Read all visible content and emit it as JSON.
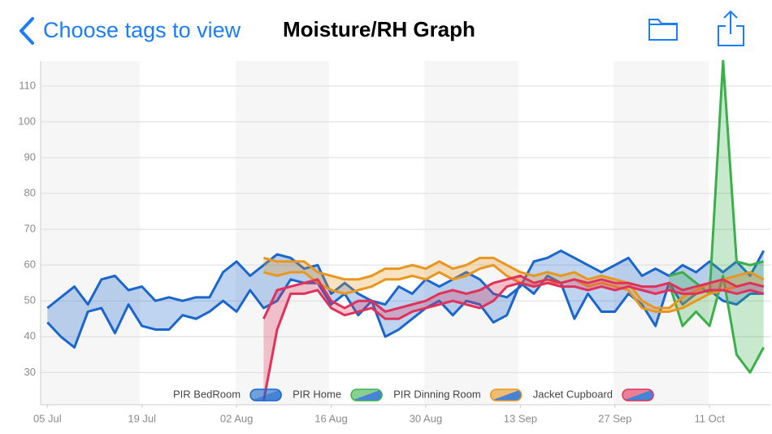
{
  "header": {
    "back": "Choose tags to view",
    "title": "Moisture/RH Graph"
  },
  "chart_data": {
    "type": "range-band",
    "x": [
      "07-05",
      "07-07",
      "07-09",
      "07-11",
      "07-13",
      "07-15",
      "07-17",
      "07-19",
      "07-21",
      "07-23",
      "07-25",
      "07-27",
      "07-29",
      "07-31",
      "08-02",
      "08-04",
      "08-06",
      "08-08",
      "08-10",
      "08-12",
      "08-14",
      "08-16",
      "08-18",
      "08-20",
      "08-22",
      "08-24",
      "08-26",
      "08-28",
      "08-30",
      "09-01",
      "09-03",
      "09-05",
      "09-07",
      "09-09",
      "09-11",
      "09-13",
      "09-15",
      "09-17",
      "09-19",
      "09-21",
      "09-23",
      "09-25",
      "09-27",
      "09-29",
      "10-01",
      "10-03",
      "10-05",
      "10-07",
      "10-09",
      "10-11",
      "10-13",
      "10-15",
      "10-17",
      "10-19"
    ],
    "xlim": [
      "07-04",
      "10-20"
    ],
    "xticks": [
      {
        "value": "07-05",
        "label": "05 Jul"
      },
      {
        "value": "07-19",
        "label": "19 Jul"
      },
      {
        "value": "08-02",
        "label": "02 Aug"
      },
      {
        "value": "08-16",
        "label": "16 Aug"
      },
      {
        "value": "08-30",
        "label": "30 Aug"
      },
      {
        "value": "09-13",
        "label": "13 Sep"
      },
      {
        "value": "09-27",
        "label": "27 Sep"
      },
      {
        "value": "10-11",
        "label": "11 Oct"
      }
    ],
    "ylim": [
      21,
      117
    ],
    "yticks": [
      30,
      40,
      50,
      60,
      70,
      80,
      90,
      100,
      110
    ],
    "grid": true,
    "series": [
      {
        "name": "PIR BedRoom",
        "color": "#1a66cc",
        "values": [
          48,
          51,
          54,
          49,
          56,
          57,
          53,
          54,
          50,
          51,
          50,
          51,
          51,
          58,
          61,
          57,
          60,
          63,
          62,
          59,
          60,
          52,
          55,
          52,
          50,
          49,
          54,
          52,
          56,
          54,
          56,
          58,
          56,
          52,
          51,
          54,
          61,
          62,
          64,
          62,
          60,
          58,
          60,
          62,
          57,
          59,
          57,
          60,
          58,
          61,
          58,
          61,
          57,
          64
        ],
        "low_values": [
          44,
          40,
          37,
          47,
          48,
          41,
          49,
          43,
          42,
          42,
          46,
          45,
          47,
          50,
          47,
          53,
          48,
          50,
          56,
          55,
          55,
          49,
          52,
          46,
          50,
          40,
          42,
          45,
          48,
          50,
          46,
          50,
          49,
          44,
          46,
          55,
          52,
          57,
          55,
          45,
          52,
          47,
          47,
          52,
          49,
          43,
          55,
          49,
          52,
          53,
          50,
          49,
          52,
          52
        ]
      },
      {
        "name": "PIR Home",
        "color": "#3bb04a",
        "values": [
          null,
          null,
          null,
          null,
          null,
          null,
          null,
          null,
          null,
          null,
          null,
          null,
          null,
          null,
          null,
          null,
          null,
          null,
          null,
          null,
          null,
          null,
          null,
          null,
          null,
          null,
          null,
          null,
          null,
          null,
          null,
          null,
          null,
          null,
          null,
          null,
          null,
          null,
          null,
          null,
          null,
          null,
          null,
          null,
          null,
          null,
          57,
          58,
          55,
          52,
          117,
          61,
          60,
          61
        ],
        "low_values": [
          null,
          null,
          null,
          null,
          null,
          null,
          null,
          null,
          null,
          null,
          null,
          null,
          null,
          null,
          null,
          null,
          null,
          null,
          null,
          null,
          null,
          null,
          null,
          null,
          null,
          null,
          null,
          null,
          null,
          null,
          null,
          null,
          null,
          null,
          null,
          null,
          null,
          null,
          null,
          null,
          null,
          null,
          null,
          null,
          null,
          null,
          55,
          43,
          47,
          43,
          57,
          35,
          30,
          37
        ]
      },
      {
        "name": "PIR Dinning Room",
        "color": "#e8961e",
        "values": [
          null,
          null,
          null,
          null,
          null,
          null,
          null,
          null,
          null,
          null,
          null,
          null,
          null,
          null,
          null,
          null,
          62,
          61,
          61,
          61,
          58,
          57,
          56,
          56,
          57,
          59,
          59,
          60,
          59,
          61,
          59,
          60,
          62,
          62,
          60,
          58,
          57,
          58,
          57,
          58,
          56,
          57,
          56,
          55,
          50,
          48,
          48,
          51,
          53,
          55,
          56,
          57,
          58,
          56
        ],
        "low_values": [
          null,
          null,
          null,
          null,
          null,
          null,
          null,
          null,
          null,
          null,
          null,
          null,
          null,
          null,
          null,
          null,
          58,
          57,
          58,
          58,
          55,
          53,
          52,
          53,
          54,
          56,
          56,
          57,
          56,
          58,
          56,
          57,
          59,
          60,
          57,
          55,
          54,
          55,
          55,
          56,
          54,
          55,
          54,
          53,
          48,
          47,
          47,
          48,
          50,
          52,
          53,
          54,
          55,
          54
        ]
      },
      {
        "name": "Jacket Cupboard",
        "color": "#e0315a",
        "values": [
          null,
          null,
          null,
          null,
          null,
          null,
          null,
          null,
          null,
          null,
          null,
          null,
          null,
          null,
          null,
          null,
          45,
          53,
          54,
          55,
          56,
          50,
          48,
          50,
          50,
          47,
          48,
          49,
          50,
          52,
          53,
          52,
          53,
          55,
          56,
          57,
          55,
          56,
          55,
          56,
          55,
          56,
          55,
          55,
          54,
          54,
          55,
          53,
          54,
          55,
          56,
          54,
          55,
          54
        ],
        "low_values": [
          null,
          null,
          null,
          null,
          null,
          null,
          null,
          null,
          null,
          null,
          null,
          null,
          null,
          null,
          null,
          null,
          22,
          42,
          52,
          52,
          53,
          48,
          46,
          47,
          48,
          45,
          45,
          47,
          48,
          49,
          50,
          49,
          48,
          50,
          54,
          55,
          54,
          55,
          54,
          54,
          53,
          54,
          53,
          54,
          53,
          52,
          53,
          52,
          52,
          53,
          53,
          52,
          53,
          52
        ]
      }
    ]
  }
}
